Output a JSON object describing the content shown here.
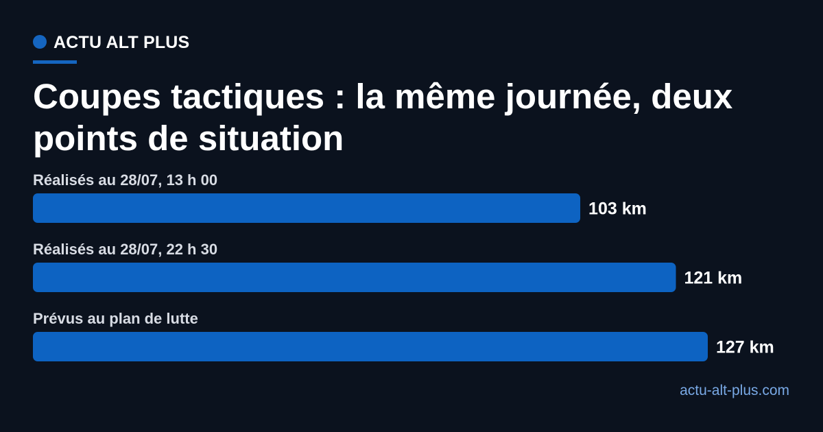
{
  "brand": {
    "name": "ACTU ALT PLUS",
    "accent": "#1565c0",
    "dot_icon": "dot-icon"
  },
  "title": "Coupes tactiques : la même journée, deux points de situation",
  "footer": {
    "site": "actu-alt-plus.com"
  },
  "colors": {
    "background": "#0b121e",
    "bar": "#0d63c2",
    "label": "#d8dce4",
    "value": "#ffffff",
    "footer": "#79a9e6"
  },
  "chart_data": {
    "type": "bar",
    "orientation": "horizontal",
    "categories": [
      "Réalisés au 28/07, 13 h 00",
      "Réalisés au 28/07, 22 h 30",
      "Prévus au plan de lutte"
    ],
    "values": [
      103,
      121,
      127
    ],
    "value_labels": [
      "103 km",
      "121 km",
      "127 km"
    ],
    "unit": "km",
    "xlim": [
      0,
      127
    ],
    "grid": false,
    "legend": "none"
  }
}
